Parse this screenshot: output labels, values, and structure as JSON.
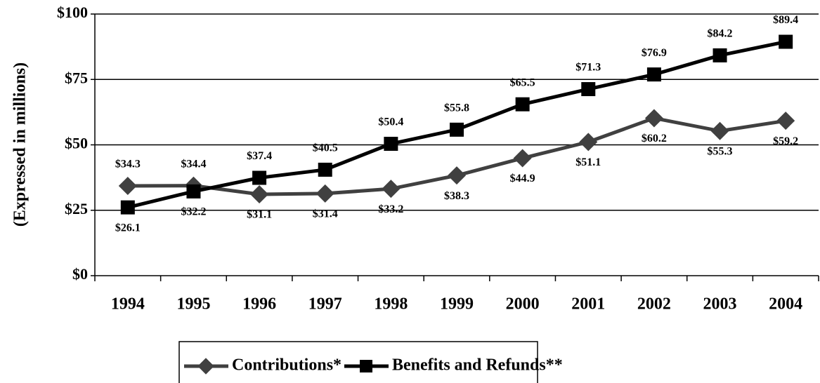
{
  "chart_data": {
    "type": "line",
    "y_label": "(Expressed in millions)",
    "categories": [
      "1994",
      "1995",
      "1996",
      "1997",
      "1998",
      "1999",
      "2000",
      "2001",
      "2002",
      "2003",
      "2004"
    ],
    "series": [
      {
        "name": "Contributions*",
        "color": "#404040",
        "marker": "diamond",
        "values": [
          34.3,
          34.4,
          31.1,
          31.4,
          33.2,
          38.3,
          44.9,
          51.1,
          60.2,
          55.3,
          59.2
        ],
        "value_labels": [
          "$34.3",
          "$34.4",
          "$31.1",
          "$31.4",
          "$33.2",
          "$38.3",
          "$44.9",
          "$51.1",
          "$60.2",
          "$55.3",
          "$59.2"
        ]
      },
      {
        "name": "Benefits and Refunds**",
        "color": "#000000",
        "marker": "square",
        "values": [
          26.1,
          32.2,
          37.4,
          40.5,
          50.4,
          55.8,
          65.5,
          71.3,
          76.9,
          84.2,
          89.4
        ],
        "value_labels": [
          "$26.1",
          "$32.2",
          "$37.4",
          "$40.5",
          "$50.4",
          "$55.8",
          "$65.5",
          "$71.3",
          "$76.9",
          "$84.2",
          "$89.4"
        ]
      }
    ],
    "ylim": [
      0,
      100
    ],
    "yticks": [
      {
        "value": 0,
        "label": "$0"
      },
      {
        "value": 25,
        "label": "$25"
      },
      {
        "value": 50,
        "label": "$50"
      },
      {
        "value": 75,
        "label": "$75"
      },
      {
        "value": 100,
        "label": "$100"
      }
    ],
    "grid": true,
    "legend": "bottom"
  }
}
